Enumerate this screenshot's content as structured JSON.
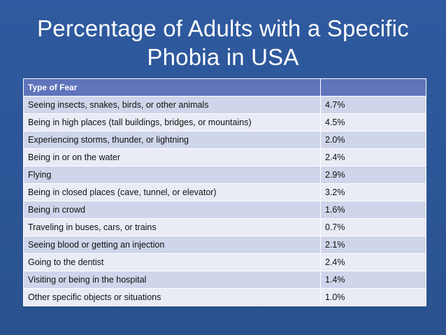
{
  "slide": {
    "title": "Percentage of Adults with a Specific Phobia in USA"
  },
  "table": {
    "headers": [
      "Type of Fear",
      ""
    ],
    "rows": [
      {
        "fear": "Seeing insects, snakes, birds, or other animals",
        "percent": "4.7%"
      },
      {
        "fear": "Being in high places (tall buildings, bridges, or mountains)",
        "percent": "4.5%"
      },
      {
        "fear": "Experiencing storms, thunder, or lightning",
        "percent": "2.0%"
      },
      {
        "fear": "Being in or on the water",
        "percent": "2.4%"
      },
      {
        "fear": "Flying",
        "percent": "2.9%"
      },
      {
        "fear": "Being in closed places (cave, tunnel, or elevator)",
        "percent": "3.2%"
      },
      {
        "fear": "Being in crowd",
        "percent": "1.6%"
      },
      {
        "fear": "Traveling in buses, cars, or trains",
        "percent": "0.7%"
      },
      {
        "fear": "Seeing blood or getting an injection",
        "percent": "2.1%"
      },
      {
        "fear": "Going to the dentist",
        "percent": "2.4%"
      },
      {
        "fear": "Visiting or being in the hospital",
        "percent": "1.4%"
      },
      {
        "fear": "Other specific objects or situations",
        "percent": "1.0%"
      }
    ]
  },
  "colors": {
    "background": "#2d5597",
    "header": "#5f74bb",
    "row_odd": "#cfd5ea",
    "row_even": "#e9ebf5"
  }
}
